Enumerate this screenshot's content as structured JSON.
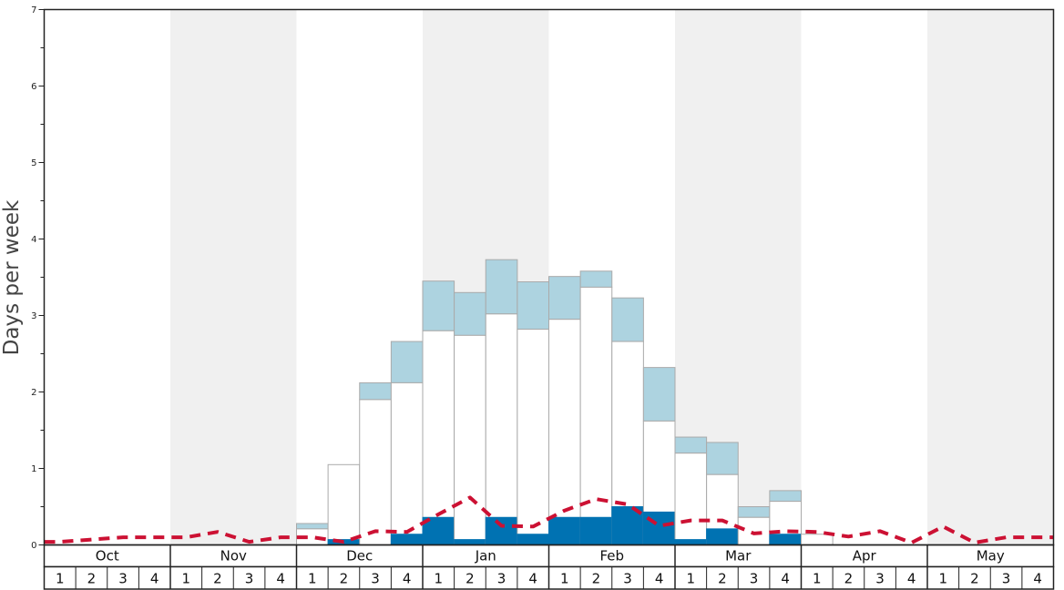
{
  "chart_data": {
    "type": "bar",
    "ylabel": "Days per week",
    "ylim": [
      0,
      7
    ],
    "y_ticks": [
      "0",
      "1",
      "2",
      "3",
      "4",
      "5",
      "6",
      "7"
    ],
    "months": [
      "Oct",
      "Nov",
      "Dec",
      "Jan",
      "Feb",
      "Mar",
      "Apr",
      "May"
    ],
    "weeks": [
      "1",
      "2",
      "3",
      "4"
    ],
    "shaded_months": [
      "Nov",
      "Jan",
      "Mar",
      "May"
    ],
    "colors": {
      "dark_blue": "#0072b2",
      "light_blue": "#add3e0",
      "white_bar": "#ffffff",
      "bar_border": "#aaaaaa",
      "dashed_line": "#cc1133",
      "shade": "#f0f0f0"
    },
    "series": [
      {
        "key": "dark",
        "values": [
          0,
          0,
          0,
          0,
          0,
          0,
          0,
          0,
          0,
          0.07,
          0,
          0.14,
          0.36,
          0.07,
          0.36,
          0.14,
          0.36,
          0.36,
          0.5,
          0.43,
          0.07,
          0.21,
          0,
          0.14,
          0,
          0,
          0,
          0,
          0,
          0,
          0,
          0
        ]
      },
      {
        "key": "white_top",
        "values": [
          0,
          0,
          0,
          0,
          0,
          0,
          0,
          0,
          0.21,
          1.05,
          1.9,
          2.12,
          2.8,
          2.74,
          3.02,
          2.82,
          2.95,
          3.37,
          2.66,
          1.62,
          1.2,
          0.92,
          0.36,
          0.57,
          0.14,
          0,
          0,
          0,
          0,
          0,
          0,
          0
        ]
      },
      {
        "key": "light_top",
        "values": [
          0,
          0,
          0,
          0,
          0,
          0,
          0,
          0,
          0.28,
          1.05,
          2.12,
          2.66,
          3.45,
          3.3,
          3.73,
          3.44,
          3.51,
          3.58,
          3.23,
          2.32,
          1.41,
          1.34,
          0.5,
          0.71,
          0.14,
          0,
          0,
          0,
          0,
          0,
          0,
          0
        ]
      },
      {
        "key": "dashed",
        "values": [
          0.04,
          0.07,
          0.1,
          0.1,
          0.1,
          0.17,
          0.04,
          0.1,
          0.1,
          0.04,
          0.18,
          0.17,
          0.4,
          0.62,
          0.25,
          0.24,
          0.45,
          0.6,
          0.53,
          0.25,
          0.32,
          0.32,
          0.15,
          0.18,
          0.17,
          0.11,
          0.18,
          0.03,
          0.24,
          0.03,
          0.1,
          0.1
        ]
      }
    ]
  }
}
